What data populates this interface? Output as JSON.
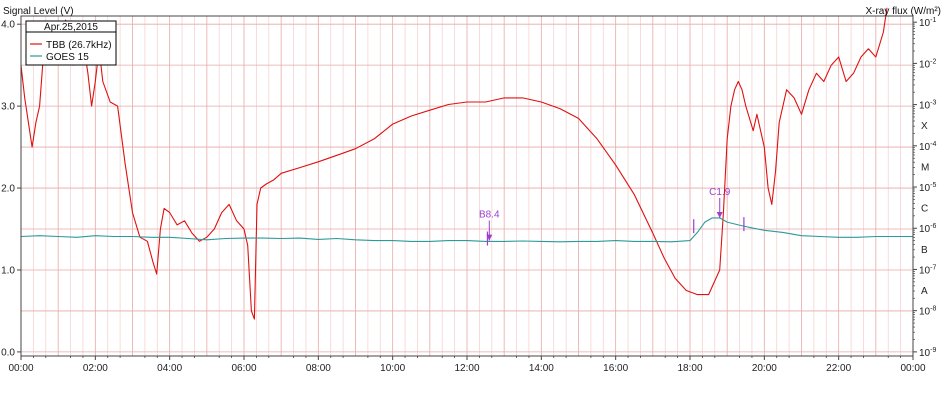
{
  "chart_data": {
    "type": "line",
    "ylabel": "Signal Level (V)",
    "y2label": "X-ray flux (W/m²)",
    "legend": {
      "title": "Apr.25,2015",
      "placement": "top-left",
      "entries": [
        {
          "name": "TBB (26.7kHz)",
          "color": "#e01010"
        },
        {
          "name": "GOES 15",
          "color": "#2a9a9a"
        }
      ]
    },
    "xlim": [
      0,
      24
    ],
    "ylim": [
      -0.05,
      4.1
    ],
    "x_ticks": [
      {
        "v": 0,
        "label": "00:00"
      },
      {
        "v": 2,
        "label": "02:00"
      },
      {
        "v": 4,
        "label": "04:00"
      },
      {
        "v": 6,
        "label": "06:00"
      },
      {
        "v": 8,
        "label": "08:00"
      },
      {
        "v": 10,
        "label": "10:00"
      },
      {
        "v": 12,
        "label": "12:00"
      },
      {
        "v": 14,
        "label": "14:00"
      },
      {
        "v": 16,
        "label": "16:00"
      },
      {
        "v": 18,
        "label": "18:00"
      },
      {
        "v": 20,
        "label": "20:00"
      },
      {
        "v": 22,
        "label": "22:00"
      },
      {
        "v": 24,
        "label": "00:00"
      }
    ],
    "y_ticks": [
      {
        "v": 0,
        "label": "0.0"
      },
      {
        "v": 1,
        "label": "1.0"
      },
      {
        "v": 2,
        "label": "2.0"
      },
      {
        "v": 3,
        "label": "3.0"
      },
      {
        "v": 4,
        "label": "4.0"
      }
    ],
    "y2_log_range": [
      -9.1,
      -0.85
    ],
    "y2_ticks": [
      {
        "v": -1,
        "base": "10",
        "exp": "-1"
      },
      {
        "v": -2,
        "base": "10",
        "exp": "-2"
      },
      {
        "v": -3,
        "base": "10",
        "exp": "-3"
      },
      {
        "v": -4,
        "base": "10",
        "exp": "-4"
      },
      {
        "v": -5,
        "base": "10",
        "exp": "-5"
      },
      {
        "v": -6,
        "base": "10",
        "exp": "-6"
      },
      {
        "v": -7,
        "base": "10",
        "exp": "-7"
      },
      {
        "v": -8,
        "base": "10",
        "exp": "-8"
      },
      {
        "v": -9,
        "base": "10",
        "exp": "-9"
      }
    ],
    "flare_classes": [
      {
        "label": "X",
        "v": -3.5
      },
      {
        "label": "M",
        "v": -4.5
      },
      {
        "label": "C",
        "v": -5.5
      },
      {
        "label": "B",
        "v": -6.5
      },
      {
        "label": "A",
        "v": -7.5
      }
    ],
    "grid": true,
    "series": [
      {
        "name": "TBB (26.7kHz)",
        "color": "#e01010",
        "axis": "left",
        "x": [
          0,
          0.1,
          0.2,
          0.3,
          0.4,
          0.5,
          0.6,
          0.7,
          0.8,
          0.9,
          1.0,
          1.1,
          1.2,
          1.3,
          1.4,
          1.5,
          1.6,
          1.7,
          1.8,
          1.9,
          2.0,
          2.1,
          2.2,
          2.4,
          2.6,
          2.8,
          3.0,
          3.2,
          3.4,
          3.55,
          3.65,
          3.75,
          3.85,
          4.0,
          4.2,
          4.4,
          4.6,
          4.8,
          5.0,
          5.2,
          5.4,
          5.6,
          5.8,
          6.0,
          6.1,
          6.2,
          6.28,
          6.35,
          6.45,
          6.6,
          6.8,
          7.0,
          7.5,
          8.0,
          8.5,
          9.0,
          9.5,
          10.0,
          10.5,
          11.0,
          11.5,
          12.0,
          12.5,
          13.0,
          13.5,
          14.0,
          14.5,
          15.0,
          15.5,
          16.0,
          16.5,
          17.0,
          17.3,
          17.6,
          17.9,
          18.2,
          18.5,
          18.8,
          18.9,
          19.0,
          19.1,
          19.2,
          19.3,
          19.4,
          19.5,
          19.6,
          19.7,
          19.8,
          19.9,
          20.0,
          20.1,
          20.2,
          20.3,
          20.4,
          20.5,
          20.6,
          20.8,
          21.0,
          21.2,
          21.4,
          21.6,
          21.8,
          22.0,
          22.2,
          22.4,
          22.6,
          22.8,
          23.0,
          23.2,
          23.3
        ],
        "y": [
          3.5,
          3.1,
          2.8,
          2.5,
          2.8,
          3.0,
          3.6,
          3.9,
          3.7,
          3.9,
          4.0,
          3.8,
          4.05,
          3.9,
          3.5,
          3.6,
          3.9,
          3.7,
          3.4,
          3.0,
          3.3,
          3.7,
          3.3,
          3.05,
          3.0,
          2.3,
          1.7,
          1.4,
          1.35,
          1.1,
          0.95,
          1.5,
          1.75,
          1.7,
          1.55,
          1.6,
          1.45,
          1.35,
          1.4,
          1.5,
          1.7,
          1.8,
          1.6,
          1.5,
          1.3,
          0.5,
          0.4,
          1.8,
          2.0,
          2.05,
          2.1,
          2.18,
          2.25,
          2.32,
          2.4,
          2.48,
          2.6,
          2.78,
          2.88,
          2.95,
          3.02,
          3.05,
          3.05,
          3.1,
          3.1,
          3.05,
          2.97,
          2.85,
          2.6,
          2.28,
          1.92,
          1.45,
          1.15,
          0.9,
          0.75,
          0.7,
          0.7,
          1.0,
          1.7,
          2.6,
          3.0,
          3.2,
          3.3,
          3.2,
          3.0,
          2.85,
          2.7,
          2.9,
          2.7,
          2.5,
          2.0,
          1.8,
          2.2,
          2.8,
          3.0,
          3.2,
          3.1,
          2.9,
          3.2,
          3.4,
          3.3,
          3.5,
          3.6,
          3.3,
          3.4,
          3.6,
          3.7,
          3.6,
          3.9,
          4.2
        ]
      },
      {
        "name": "GOES 15",
        "color": "#2a9a9a",
        "axis": "right",
        "x": [
          0,
          0.5,
          1.0,
          1.5,
          2.0,
          2.5,
          3.0,
          3.5,
          4.0,
          4.5,
          5.0,
          5.5,
          6.0,
          6.5,
          7.0,
          7.5,
          8.0,
          8.5,
          9.0,
          9.5,
          10.0,
          10.5,
          11.0,
          11.5,
          12.0,
          12.5,
          13.0,
          13.5,
          14.0,
          14.5,
          15.0,
          15.5,
          16.0,
          16.5,
          17.0,
          17.5,
          18.0,
          18.2,
          18.4,
          18.6,
          18.8,
          19.0,
          19.3,
          19.6,
          20.0,
          20.5,
          21.0,
          21.5,
          22.0,
          22.5,
          23.0,
          23.5,
          24.0
        ],
        "y": [
          -6.2,
          -6.18,
          -6.2,
          -6.22,
          -6.18,
          -6.2,
          -6.2,
          -6.22,
          -6.22,
          -6.25,
          -6.28,
          -6.25,
          -6.24,
          -6.24,
          -6.25,
          -6.24,
          -6.27,
          -6.25,
          -6.28,
          -6.3,
          -6.3,
          -6.32,
          -6.32,
          -6.3,
          -6.3,
          -6.32,
          -6.32,
          -6.31,
          -6.32,
          -6.33,
          -6.32,
          -6.32,
          -6.3,
          -6.32,
          -6.32,
          -6.33,
          -6.3,
          -6.1,
          -5.85,
          -5.75,
          -5.75,
          -5.85,
          -5.92,
          -5.98,
          -6.05,
          -6.1,
          -6.18,
          -6.2,
          -6.22,
          -6.22,
          -6.2,
          -6.2,
          -6.2
        ]
      }
    ],
    "annotations": [
      {
        "text": "B8.4",
        "x": 12.6,
        "axis": "right",
        "y": -6.3,
        "color": "#9b3fcf"
      },
      {
        "text": "C1.9",
        "x": 18.8,
        "axis": "right",
        "y": -5.75,
        "color": "#9b3fcf"
      }
    ],
    "event_markers": [
      {
        "x": 12.55,
        "axis": "right",
        "y": -6.25,
        "color": "#9b3fcf"
      },
      {
        "x": 18.1,
        "axis": "right",
        "y": -5.95,
        "color": "#9b3fcf"
      },
      {
        "x": 19.45,
        "axis": "right",
        "y": -5.9,
        "color": "#9b3fcf"
      }
    ]
  }
}
